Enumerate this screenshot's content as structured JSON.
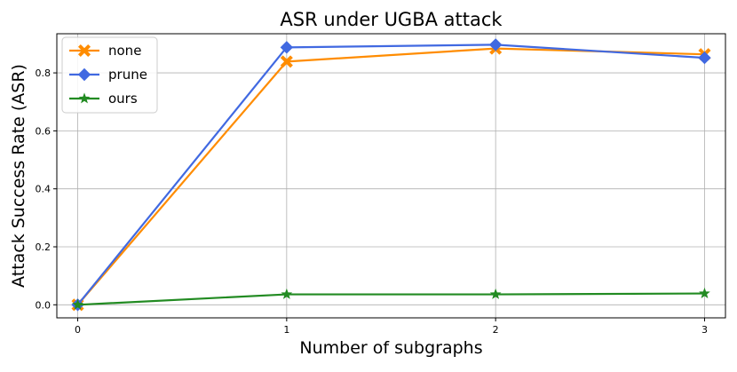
{
  "chart_data": {
    "type": "line",
    "title": "ASR under UGBA attack",
    "xlabel": "Number of subgraphs",
    "ylabel": "Attack Success Rate (ASR)",
    "x": [
      0,
      1,
      2,
      3
    ],
    "xticks": [
      "0",
      "1",
      "2",
      "3"
    ],
    "yticks": [
      "0.0",
      "0.2",
      "0.4",
      "0.6",
      "0.8"
    ],
    "xlim": [
      -0.1,
      3.1
    ],
    "ylim": [
      -0.045,
      0.935
    ],
    "grid": true,
    "legend_position": "top-left",
    "series": [
      {
        "name": "none",
        "values": [
          0.0,
          0.839,
          0.884,
          0.864
        ],
        "color": "#ff8c00",
        "marker": "x-filled"
      },
      {
        "name": "prune",
        "values": [
          0.0,
          0.888,
          0.897,
          0.852
        ],
        "color": "#4169e1",
        "marker": "diamond"
      },
      {
        "name": "ours",
        "values": [
          0.0,
          0.036,
          0.036,
          0.039
        ],
        "color": "#228b22",
        "marker": "star"
      }
    ]
  }
}
